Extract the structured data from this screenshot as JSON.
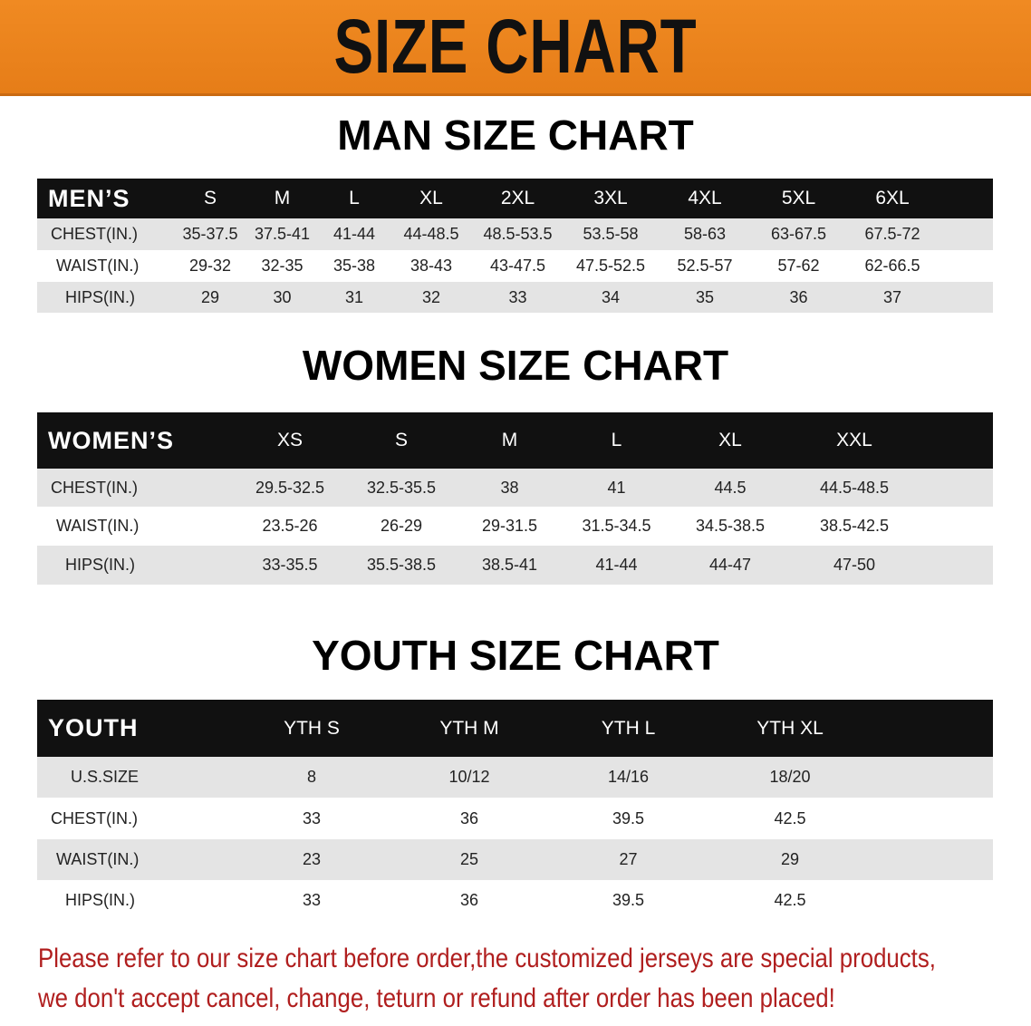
{
  "banner_title": "SIZE CHART",
  "accent_color": "#ec8420",
  "note_color": "#b01e1e",
  "men": {
    "title": "MAN SIZE CHART",
    "header": [
      "MEN’S",
      "S",
      "M",
      "L",
      "XL",
      "2XL",
      "3XL",
      "4XL",
      "5XL",
      "6XL"
    ],
    "rows": [
      [
        "CHEST(IN.)",
        "35-37.5",
        "37.5-41",
        "41-44",
        "44-48.5",
        "48.5-53.5",
        "53.5-58",
        "58-63",
        "63-67.5",
        "67.5-72"
      ],
      [
        "WAIST(IN.)",
        "29-32",
        "32-35",
        "35-38",
        "38-43",
        "43-47.5",
        "47.5-52.5",
        "52.5-57",
        "57-62",
        "62-66.5"
      ],
      [
        "HIPS(IN.)",
        "29",
        "30",
        "31",
        "32",
        "33",
        "34",
        "35",
        "36",
        "37"
      ]
    ]
  },
  "women": {
    "title": "WOMEN SIZE CHART",
    "header": [
      "WOMEN’S",
      "XS",
      "S",
      "M",
      "L",
      "XL",
      "XXL"
    ],
    "rows": [
      [
        "CHEST(IN.)",
        "29.5-32.5",
        "32.5-35.5",
        "38",
        "41",
        "44.5",
        "44.5-48.5"
      ],
      [
        "WAIST(IN.)",
        "23.5-26",
        "26-29",
        "29-31.5",
        "31.5-34.5",
        "34.5-38.5",
        "38.5-42.5"
      ],
      [
        "HIPS(IN.)",
        "33-35.5",
        "35.5-38.5",
        "38.5-41",
        "41-44",
        "44-47",
        "47-50"
      ]
    ]
  },
  "youth": {
    "title": "YOUTH SIZE CHART",
    "header": [
      "YOUTH",
      "YTH S",
      "YTH M",
      "YTH L",
      "YTH XL"
    ],
    "rows": [
      [
        "U.S.SIZE",
        "8",
        "10/12",
        "14/16",
        "18/20"
      ],
      [
        "CHEST(IN.)",
        "33",
        "36",
        "39.5",
        "42.5"
      ],
      [
        "WAIST(IN.)",
        "23",
        "25",
        "27",
        "29"
      ],
      [
        "HIPS(IN.)",
        "33",
        "36",
        "39.5",
        "42.5"
      ]
    ]
  },
  "note": {
    "line1": "Please refer to our size chart before order,the customized jerseys are special products,",
    "line2": "we don't accept cancel, change, teturn or refund after order has been placed!"
  }
}
